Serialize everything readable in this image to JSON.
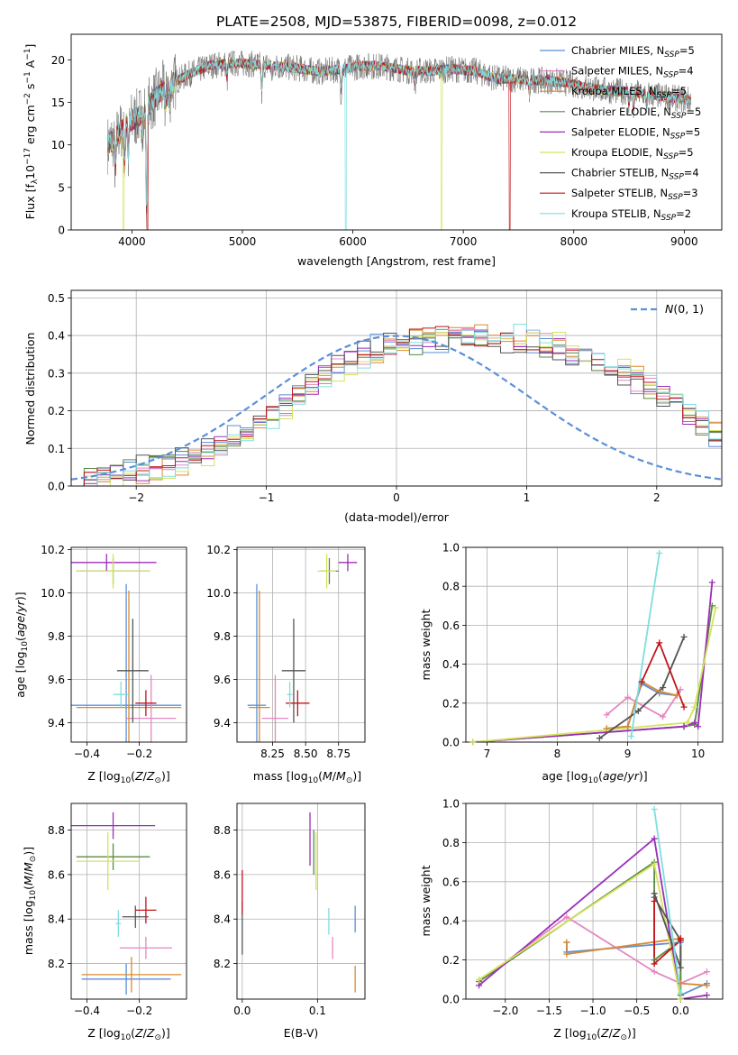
{
  "figure_title": "PLATE=2508, MJD=53875, FIBERID=0098, z=0.012",
  "colors": {
    "Chabrier MILES": "#5b8fd9",
    "Salpeter MILES": "#e388c0",
    "Kroupa MILES": "#d98a2f",
    "Chabrier ELODIE": "#5a8a46",
    "Salpeter ELODIE": "#9b2fb8",
    "Kroupa ELODIE": "#d4e35a",
    "Chabrier STELIB": "#555555",
    "Salpeter STELIB": "#c0161c",
    "Kroupa STELIB": "#80dde0",
    "gauss": "#5b8fd9"
  },
  "chart_data": [
    {
      "id": "spectrum",
      "type": "line",
      "xlabel": "wavelength [Angstrom, rest frame]",
      "ylabel": "Flux [f_λ10^-17 erg cm^-2 s^-1 A^-1]",
      "xlim": [
        3450,
        9340
      ],
      "ylim": [
        0,
        23
      ],
      "xticks": [
        4000,
        5000,
        6000,
        7000,
        8000,
        9000
      ],
      "yticks": [
        0,
        5,
        10,
        15,
        20
      ],
      "grid": false,
      "legend_position": "top-right",
      "legend": [
        "Chabrier MILES, N_SSP=5",
        "Salpeter MILES, N_SSP=4",
        "Kroupa MILES, N_SSP=5",
        "Chabrier ELODIE, N_SSP=5",
        "Salpeter ELODIE, N_SSP=5",
        "Kroupa ELODIE, N_SSP=5",
        "Chabrier STELIB, N_SSP=4",
        "Salpeter STELIB, N_SSP=3",
        "Kroupa STELIB, N_SSP=2"
      ],
      "continuum": {
        "x": [
          3780,
          3850,
          3950,
          4050,
          4150,
          4300,
          4500,
          4700,
          4900,
          5100,
          5300,
          5500,
          5700,
          5900,
          6100,
          6300,
          6500,
          6700,
          6900,
          7100,
          7300,
          7500,
          7700,
          7900,
          8100,
          8300,
          8500,
          8700,
          8900,
          9060
        ],
        "y": [
          10.0,
          10.8,
          12.5,
          13.2,
          14.6,
          16.8,
          18.2,
          19.3,
          19.6,
          19.5,
          19.3,
          19.0,
          18.6,
          18.9,
          19.3,
          19.2,
          18.7,
          18.7,
          18.9,
          18.7,
          17.8,
          17.7,
          17.6,
          17.4,
          16.8,
          16.4,
          16.2,
          15.9,
          15.5,
          15.3
        ]
      },
      "absorption_features": [
        {
          "x": 3850,
          "depth": 4.0
        },
        {
          "x": 3934,
          "depth": 5.0
        },
        {
          "x": 3968,
          "depth": 4.5
        },
        {
          "x": 4102,
          "depth": 2.5
        },
        {
          "x": 4134,
          "depth": 14.0
        },
        {
          "x": 4304,
          "depth": 3.0
        },
        {
          "x": 4340,
          "depth": 2.5
        },
        {
          "x": 4861,
          "depth": 2.0
        },
        {
          "x": 5175,
          "depth": 3.5
        },
        {
          "x": 5270,
          "depth": 1.5
        },
        {
          "x": 5893,
          "depth": 3.0
        },
        {
          "x": 6563,
          "depth": 1.5
        },
        {
          "x": 7600,
          "depth": 2.0
        },
        {
          "x": 8500,
          "depth": 1.5
        },
        {
          "x": 8542,
          "depth": 2.0
        },
        {
          "x": 8662,
          "depth": 1.5
        }
      ],
      "model_gaps": [
        {
          "x": 5935,
          "series": "Kroupa STELIB"
        },
        {
          "x": 6805,
          "series": "Kroupa ELODIE"
        },
        {
          "x": 7420,
          "series": "Salpeter STELIB"
        },
        {
          "x": 3925,
          "series": "Kroupa ELODIE"
        },
        {
          "x": 4140,
          "series": "Salpeter STELIB"
        }
      ]
    },
    {
      "id": "residuals",
      "type": "line",
      "xlabel": "(data-model)/error",
      "ylabel": "Normed distribution",
      "xlim": [
        -2.5,
        2.5
      ],
      "ylim": [
        0,
        0.52
      ],
      "xticks": [
        -2,
        -1,
        0,
        1,
        2
      ],
      "yticks": [
        0.0,
        0.1,
        0.2,
        0.3,
        0.4,
        0.5
      ],
      "grid": true,
      "legend_position": "top-right",
      "legend": [
        "N(0,1)"
      ],
      "bin_edges_start": -2.5,
      "bin_width": 0.1,
      "histogram_base": [
        0.018,
        0.02,
        0.024,
        0.03,
        0.035,
        0.042,
        0.05,
        0.058,
        0.066,
        0.078,
        0.092,
        0.108,
        0.125,
        0.145,
        0.165,
        0.19,
        0.215,
        0.24,
        0.265,
        0.29,
        0.31,
        0.33,
        0.35,
        0.365,
        0.375,
        0.383,
        0.388,
        0.392,
        0.394,
        0.396,
        0.398,
        0.396,
        0.395,
        0.392,
        0.39,
        0.385,
        0.378,
        0.37,
        0.36,
        0.35,
        0.335,
        0.32,
        0.3,
        0.28,
        0.26,
        0.24,
        0.215,
        0.19,
        0.165,
        0.14
      ]
    },
    {
      "id": "Z-age",
      "type": "scatter",
      "xlabel": "Z [log10(Z/Z⊙)]",
      "ylabel": "age  [log10(age/yr)]",
      "xlim": [
        -0.46,
        -0.02
      ],
      "ylim": [
        9.31,
        10.21
      ],
      "xticks": [
        -0.4,
        -0.2
      ],
      "yticks": [
        9.4,
        9.6,
        9.8,
        10.0,
        10.2
      ],
      "grid": true,
      "points": [
        {
          "series": "Chabrier MILES",
          "x": -0.25,
          "y": 9.48,
          "xerr": 0.21,
          "yerr": 0.56
        },
        {
          "series": "Salpeter MILES",
          "x": -0.155,
          "y": 9.42,
          "xerr": 0.095,
          "yerr": 0.2
        },
        {
          "series": "Kroupa MILES",
          "x": -0.24,
          "y": 9.47,
          "xerr": 0.2,
          "yerr": 0.54
        },
        {
          "series": "Chabrier ELODIE",
          "x": -0.3,
          "y": 10.1,
          "xerr": 0.14,
          "yerr": 0.06
        },
        {
          "series": "Salpeter ELODIE",
          "x": -0.325,
          "y": 10.14,
          "xerr": 0.19,
          "yerr": 0.04
        },
        {
          "series": "Kroupa ELODIE",
          "x": -0.3,
          "y": 10.1,
          "xerr": 0.14,
          "yerr": 0.08
        },
        {
          "series": "Chabrier STELIB",
          "x": -0.225,
          "y": 9.64,
          "xerr": 0.06,
          "yerr": 0.24
        },
        {
          "series": "Salpeter STELIB",
          "x": -0.175,
          "y": 9.49,
          "xerr": 0.04,
          "yerr": 0.06
        },
        {
          "series": "Kroupa STELIB",
          "x": -0.27,
          "y": 9.53,
          "xerr": 0.03,
          "yerr": 0.06
        }
      ]
    },
    {
      "id": "mass-age",
      "type": "scatter",
      "xlabel": "mass [log10(M/M⊙)]",
      "ylabel": "",
      "xlim": [
        7.98,
        8.95
      ],
      "ylim": [
        9.31,
        10.21
      ],
      "xticks": [
        8.25,
        8.5,
        8.75
      ],
      "yticks": [
        9.4,
        9.6,
        9.8,
        10.0,
        10.2
      ],
      "grid": true,
      "points": [
        {
          "series": "Chabrier MILES",
          "x": 8.13,
          "y": 9.48,
          "xerr": 0.07,
          "yerr": 0.56
        },
        {
          "series": "Salpeter MILES",
          "x": 8.27,
          "y": 9.42,
          "xerr": 0.1,
          "yerr": 0.2
        },
        {
          "series": "Kroupa MILES",
          "x": 8.15,
          "y": 9.47,
          "xerr": 0.08,
          "yerr": 0.54
        },
        {
          "series": "Chabrier ELODIE",
          "x": 8.68,
          "y": 10.1,
          "xerr": 0.07,
          "yerr": 0.06
        },
        {
          "series": "Salpeter ELODIE",
          "x": 8.82,
          "y": 10.14,
          "xerr": 0.07,
          "yerr": 0.04
        },
        {
          "series": "Kroupa ELODIE",
          "x": 8.66,
          "y": 10.1,
          "xerr": 0.07,
          "yerr": 0.08
        },
        {
          "series": "Chabrier STELIB",
          "x": 8.41,
          "y": 9.64,
          "xerr": 0.09,
          "yerr": 0.24
        },
        {
          "series": "Salpeter STELIB",
          "x": 8.44,
          "y": 9.49,
          "xerr": 0.09,
          "yerr": 0.06
        },
        {
          "series": "Kroupa STELIB",
          "x": 8.38,
          "y": 9.53,
          "xerr": 0.02,
          "yerr": 0.06
        }
      ]
    },
    {
      "id": "age-weight",
      "type": "line",
      "xlabel": "age  [log10(age/yr)]",
      "ylabel": "mass weight",
      "xlim": [
        6.7,
        10.35
      ],
      "ylim": [
        0,
        1
      ],
      "xticks": [
        7,
        8,
        9,
        10
      ],
      "yticks": [
        0.0,
        0.2,
        0.4,
        0.6,
        0.8,
        1.0
      ],
      "grid": true,
      "series": [
        {
          "name": "Chabrier MILES",
          "x": [
            8.7,
            9.0,
            9.2,
            9.45,
            9.7
          ],
          "y": [
            0.07,
            0.08,
            0.3,
            0.25,
            0.24
          ]
        },
        {
          "name": "Salpeter MILES",
          "x": [
            8.7,
            9.0,
            9.5,
            9.75
          ],
          "y": [
            0.14,
            0.23,
            0.13,
            0.27
          ]
        },
        {
          "name": "Kroupa MILES",
          "x": [
            8.7,
            9.0,
            9.2,
            9.45,
            9.7
          ],
          "y": [
            0.07,
            0.08,
            0.31,
            0.26,
            0.24
          ]
        },
        {
          "name": "Chabrier ELODIE",
          "x": [
            6.8,
            9.8,
            9.95,
            10.2
          ],
          "y": [
            0.0,
            0.08,
            0.09,
            0.7
          ]
        },
        {
          "name": "Salpeter ELODIE",
          "x": [
            6.8,
            9.8,
            9.95,
            10.0,
            10.2
          ],
          "y": [
            0.0,
            0.08,
            0.1,
            0.08,
            0.82
          ]
        },
        {
          "name": "Kroupa ELODIE",
          "x": [
            6.8,
            9.85,
            9.95,
            10.25
          ],
          "y": [
            0.0,
            0.1,
            0.18,
            0.69
          ]
        },
        {
          "name": "Chabrier STELIB",
          "x": [
            8.6,
            9.15,
            9.5,
            9.8
          ],
          "y": [
            0.02,
            0.16,
            0.28,
            0.54
          ]
        },
        {
          "name": "Salpeter STELIB",
          "x": [
            9.2,
            9.45,
            9.8
          ],
          "y": [
            0.31,
            0.51,
            0.18
          ]
        },
        {
          "name": "Kroupa STELIB",
          "x": [
            9.05,
            9.45
          ],
          "y": [
            0.03,
            0.97
          ]
        }
      ]
    },
    {
      "id": "Z-mass",
      "type": "scatter",
      "xlabel": "Z [log10(Z/Z⊙)]",
      "ylabel": "mass [log10(M/M⊙)]",
      "xlim": [
        -0.46,
        -0.02
      ],
      "ylim": [
        8.04,
        8.92
      ],
      "xticks": [
        -0.4,
        -0.2
      ],
      "yticks": [
        8.2,
        8.4,
        8.6,
        8.8
      ],
      "grid": true,
      "points": [
        {
          "series": "Chabrier MILES",
          "x": -0.25,
          "y": 8.13,
          "xerr": 0.17,
          "yerr": 0.07
        },
        {
          "series": "Salpeter MILES",
          "x": -0.175,
          "y": 8.27,
          "xerr": 0.1,
          "yerr": 0.05
        },
        {
          "series": "Kroupa MILES",
          "x": -0.23,
          "y": 8.15,
          "xerr": 0.19,
          "yerr": 0.08
        },
        {
          "series": "Chabrier ELODIE",
          "x": -0.3,
          "y": 8.68,
          "xerr": 0.14,
          "yerr": 0.06
        },
        {
          "series": "Salpeter ELODIE",
          "x": -0.3,
          "y": 8.82,
          "xerr": 0.16,
          "yerr": 0.06
        },
        {
          "series": "Kroupa ELODIE",
          "x": -0.32,
          "y": 8.66,
          "xerr": 0.12,
          "yerr": 0.13
        },
        {
          "series": "Chabrier STELIB",
          "x": -0.215,
          "y": 8.41,
          "xerr": 0.05,
          "yerr": 0.05
        },
        {
          "series": "Salpeter STELIB",
          "x": -0.175,
          "y": 8.44,
          "xerr": 0.04,
          "yerr": 0.06
        },
        {
          "series": "Kroupa STELIB",
          "x": -0.28,
          "y": 8.38,
          "xerr": 0.01,
          "yerr": 0.06
        }
      ]
    },
    {
      "id": "ebv-mass",
      "type": "scatter",
      "xlabel": "E(B-V)",
      "ylabel": "",
      "xlim": [
        -0.007,
        0.163
      ],
      "ylim": [
        8.04,
        8.92
      ],
      "xticks": [
        0.0,
        0.1
      ],
      "yticks": [
        8.2,
        8.4,
        8.6,
        8.8
      ],
      "grid": true,
      "points": [
        {
          "series": "Chabrier MILES",
          "x": 0.15,
          "y": 8.4,
          "yerr": 0.06
        },
        {
          "series": "Salpeter MILES",
          "x": 0.12,
          "y": 8.27,
          "yerr": 0.05
        },
        {
          "series": "Kroupa MILES",
          "x": 0.15,
          "y": 8.13,
          "yerr": 0.06
        },
        {
          "series": "Chabrier ELODIE",
          "x": 0.095,
          "y": 8.7,
          "yerr": 0.1
        },
        {
          "series": "Salpeter ELODIE",
          "x": 0.09,
          "y": 8.76,
          "yerr": 0.12
        },
        {
          "series": "Kroupa ELODIE",
          "x": 0.098,
          "y": 8.66,
          "yerr": 0.13
        },
        {
          "series": "Chabrier STELIB",
          "x": 0.0,
          "y": 8.36,
          "yerr": 0.12
        },
        {
          "series": "Salpeter STELIB",
          "x": 0.0,
          "y": 8.52,
          "yerr": 0.1
        },
        {
          "series": "Kroupa STELIB",
          "x": 0.115,
          "y": 8.39,
          "yerr": 0.06
        }
      ]
    },
    {
      "id": "Z-weight",
      "type": "line",
      "xlabel": "Z [log10(Z/Z⊙)]",
      "ylabel": "mass weight",
      "xlim": [
        -2.45,
        0.48
      ],
      "ylim": [
        0,
        1
      ],
      "xticks": [
        -2.0,
        -1.5,
        -1.0,
        -0.5,
        0.0
      ],
      "yticks": [
        0.0,
        0.2,
        0.4,
        0.6,
        0.8,
        1.0
      ],
      "grid": true,
      "series": [
        {
          "name": "Chabrier MILES",
          "x": [
            -1.3,
            -1.3,
            0.0,
            0.0,
            0.3
          ],
          "y": [
            0.29,
            0.24,
            0.29,
            0.02,
            0.08
          ]
        },
        {
          "name": "Salpeter MILES",
          "x": [
            -2.3,
            -1.3,
            -0.3,
            0.0,
            0.3
          ],
          "y": [
            0.09,
            0.42,
            0.14,
            0.08,
            0.14
          ]
        },
        {
          "name": "Kroupa MILES",
          "x": [
            -1.3,
            -1.3,
            0.0,
            0.0,
            0.3
          ],
          "y": [
            0.29,
            0.23,
            0.31,
            0.08,
            0.07
          ]
        },
        {
          "name": "Chabrier ELODIE",
          "x": [
            -2.3,
            -0.3,
            -0.3,
            0.0,
            0.0
          ],
          "y": [
            0.09,
            0.7,
            0.2,
            0.3,
            0.02
          ]
        },
        {
          "name": "Salpeter ELODIE",
          "x": [
            -2.3,
            -0.3,
            0.0,
            0.3
          ],
          "y": [
            0.07,
            0.82,
            0.0,
            0.02
          ]
        },
        {
          "name": "Kroupa ELODIE",
          "x": [
            -2.3,
            -0.3,
            0.0,
            0.0
          ],
          "y": [
            0.1,
            0.69,
            0.0,
            0.03
          ]
        },
        {
          "name": "Chabrier STELIB",
          "x": [
            -0.3,
            0.0,
            0.0,
            -0.3
          ],
          "y": [
            0.54,
            0.16,
            0.3,
            0.52
          ]
        },
        {
          "name": "Salpeter STELIB",
          "x": [
            -0.3,
            -0.3,
            0.0,
            0.0
          ],
          "y": [
            0.5,
            0.18,
            0.3,
            0.31
          ]
        },
        {
          "name": "Kroupa STELIB",
          "x": [
            -0.3,
            0.0
          ],
          "y": [
            0.97,
            0.03
          ]
        }
      ]
    }
  ]
}
